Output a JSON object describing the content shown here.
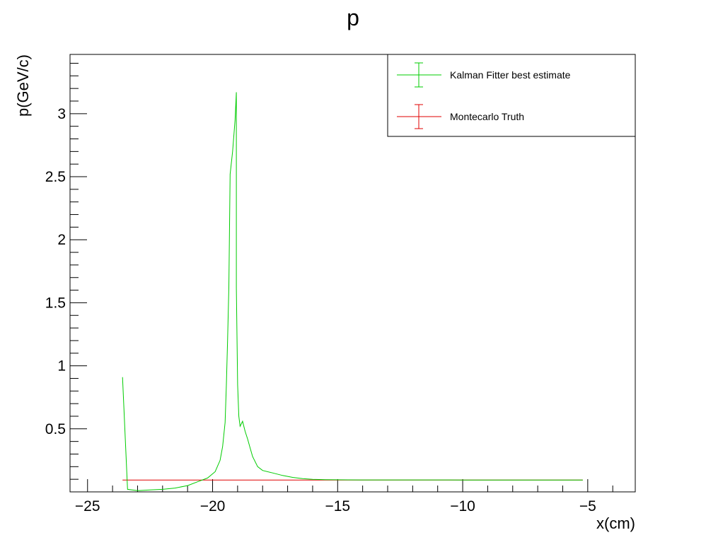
{
  "chart_data": {
    "type": "line",
    "title": "p",
    "xlabel": "x(cm)",
    "ylabel": "p(GeV/c)",
    "xlim": [
      -25.7,
      -3.1
    ],
    "ylim": [
      0.0,
      3.47
    ],
    "x_ticks": [
      -25,
      -20,
      -15,
      -10,
      -5
    ],
    "x_tick_labels": [
      "−25",
      "−20",
      "−15",
      "−10",
      "−5"
    ],
    "y_ticks": [
      0.5,
      1,
      1.5,
      2,
      2.5,
      3
    ],
    "y_tick_labels": [
      "0.5",
      "1",
      "1.5",
      "2",
      "2.5",
      "3"
    ],
    "grid": false,
    "legend_position": "top-right",
    "series": [
      {
        "name": "Kalman Fitter best estimate",
        "color": "#00cc00",
        "points": [
          [
            -23.6,
            0.91
          ],
          [
            -23.4,
            0.02
          ],
          [
            -23.0,
            0.01
          ],
          [
            -22.5,
            0.015
          ],
          [
            -22.0,
            0.02
          ],
          [
            -21.5,
            0.03
          ],
          [
            -21.0,
            0.05
          ],
          [
            -20.6,
            0.08
          ],
          [
            -20.2,
            0.11
          ],
          [
            -19.9,
            0.16
          ],
          [
            -19.7,
            0.25
          ],
          [
            -19.6,
            0.36
          ],
          [
            -19.5,
            0.55
          ],
          [
            -19.45,
            0.85
          ],
          [
            -19.4,
            1.2
          ],
          [
            -19.35,
            1.62
          ],
          [
            -19.3,
            2.52
          ],
          [
            -19.2,
            2.7
          ],
          [
            -19.1,
            2.95
          ],
          [
            -19.05,
            3.17
          ],
          [
            -19.05,
            1.62
          ],
          [
            -19.0,
            0.85
          ],
          [
            -18.95,
            0.6
          ],
          [
            -18.9,
            0.52
          ],
          [
            -18.8,
            0.56
          ],
          [
            -18.7,
            0.48
          ],
          [
            -18.6,
            0.42
          ],
          [
            -18.5,
            0.35
          ],
          [
            -18.4,
            0.28
          ],
          [
            -18.2,
            0.2
          ],
          [
            -18.0,
            0.17
          ],
          [
            -17.6,
            0.15
          ],
          [
            -17.2,
            0.13
          ],
          [
            -16.8,
            0.115
          ],
          [
            -16.4,
            0.105
          ],
          [
            -16.0,
            0.1
          ],
          [
            -15.5,
            0.097
          ],
          [
            -14.0,
            0.095
          ],
          [
            -10.0,
            0.094
          ],
          [
            -5.2,
            0.094
          ]
        ]
      },
      {
        "name": "Montecarlo Truth",
        "color": "#e00000",
        "points": [
          [
            -23.6,
            0.094
          ],
          [
            -5.2,
            0.094
          ]
        ]
      }
    ]
  }
}
